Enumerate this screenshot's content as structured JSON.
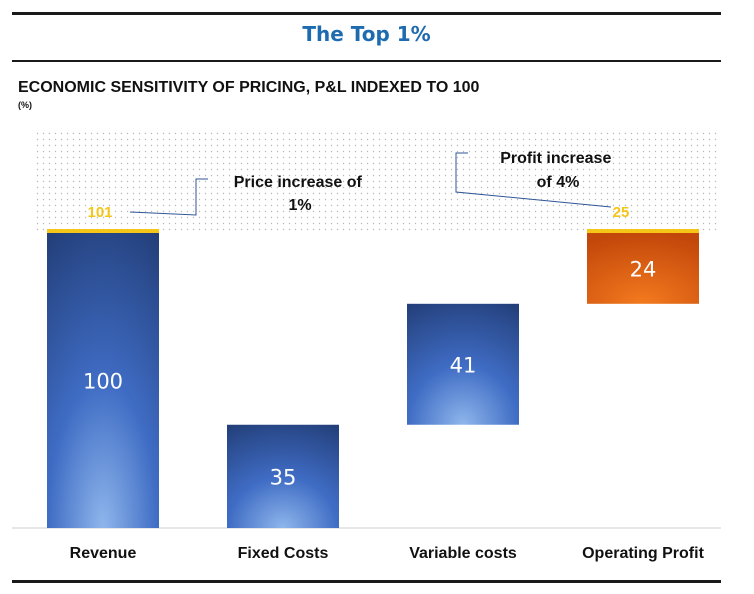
{
  "header": {
    "title": "The Top 1%"
  },
  "chart_data": {
    "type": "bar",
    "subtype": "waterfall",
    "title": "ECONOMIC SENSITIVITY OF PRICING, P&L INDEXED TO 100",
    "unit": "(%)",
    "categories": [
      "Revenue",
      "Fixed Costs",
      "Variable costs",
      "Operating Profit"
    ],
    "values": [
      100,
      35,
      41,
      24
    ],
    "bar_ranges": [
      [
        0,
        100
      ],
      [
        0,
        35
      ],
      [
        35,
        76
      ],
      [
        76,
        100
      ]
    ],
    "scenario_values": [
      101,
      null,
      null,
      25
    ],
    "scenario_color": "#f5c518",
    "colors": {
      "revenue": "#2b4f8e",
      "costs": "#2f5597",
      "profit": "#d9580a",
      "label": "#ffffff"
    },
    "ylim": [
      0,
      101
    ],
    "annotations": [
      {
        "text_lines": [
          "Price increase of",
          "1%"
        ],
        "target": "Revenue"
      },
      {
        "text_lines": [
          "Profit increase",
          "of 4%"
        ],
        "target": "Operating Profit"
      }
    ],
    "highlight_band": "dotted band above indexed baseline of 100"
  }
}
